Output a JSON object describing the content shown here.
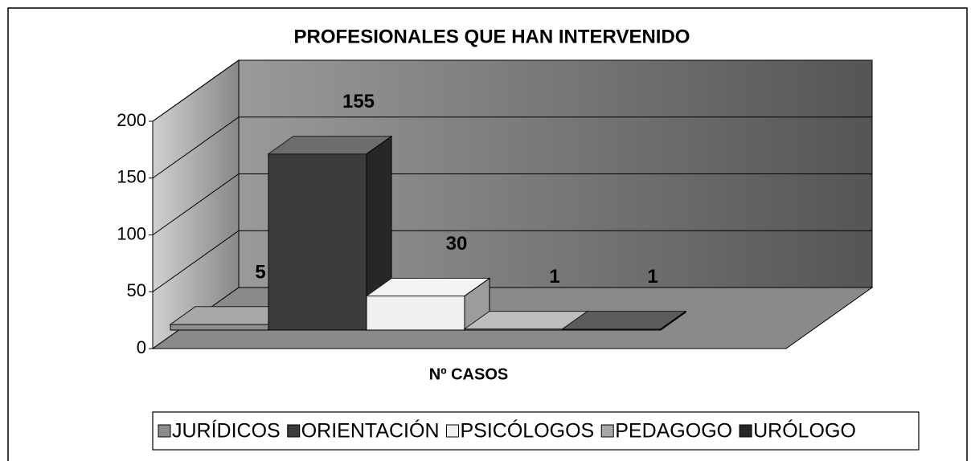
{
  "chart_data": {
    "type": "bar3d",
    "title": "PROFESIONALES QUE HAN INTERVENIDO",
    "categories": [
      "Nº CASOS"
    ],
    "series": [
      {
        "name": "JURÍDICOS",
        "color": "#8c8c8c",
        "values": [
          5
        ]
      },
      {
        "name": "ORIENTACIÓN",
        "color": "#3c3c3c",
        "values": [
          155
        ]
      },
      {
        "name": "PSICÓLOGOS",
        "color": "#f0f0f0",
        "values": [
          30
        ]
      },
      {
        "name": "PEDAGOGO",
        "color": "#a8a8a8",
        "values": [
          1
        ]
      },
      {
        "name": "URÓLOGO",
        "color": "#262626",
        "values": [
          1
        ]
      }
    ],
    "ylim": [
      0,
      200
    ],
    "yticks": [
      0,
      50,
      100,
      150,
      200
    ],
    "grid": true,
    "legend": "bottom"
  }
}
